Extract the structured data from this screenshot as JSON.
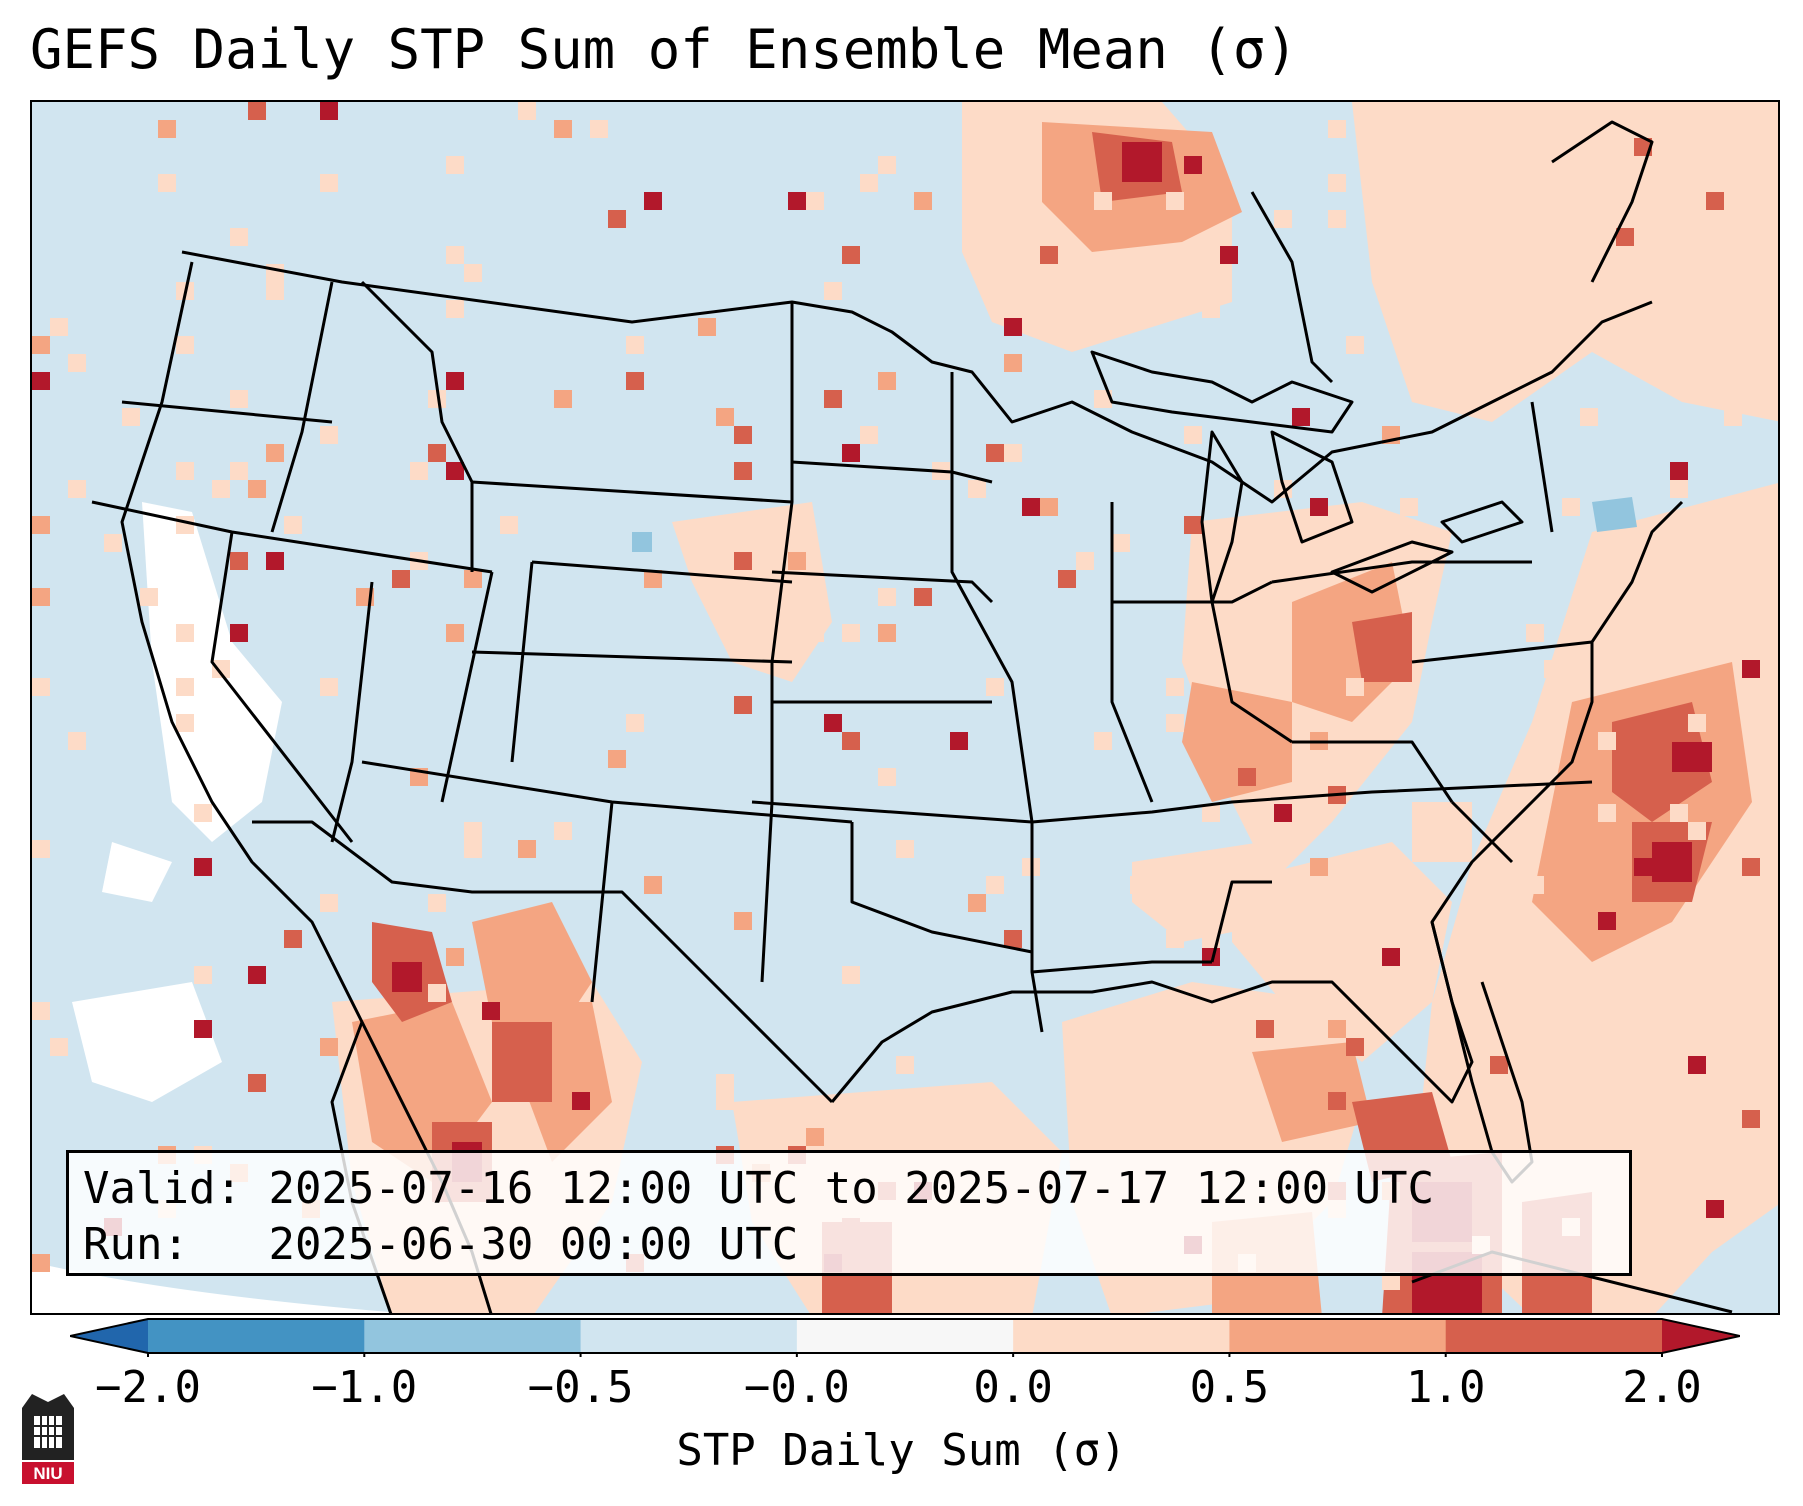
{
  "title": "GEFS Daily STP Sum of Ensemble Mean (σ)",
  "info": {
    "valid_label": "Valid:",
    "valid_value": "2025-07-16 12:00 UTC to 2025-07-17 12:00 UTC",
    "run_label": "Run:",
    "run_value": "2025-06-30 00:00 UTC"
  },
  "colorbar": {
    "label": "STP Daily Sum (σ)",
    "ticks": [
      "−2.0",
      "−1.0",
      "−0.5",
      "−0.0",
      "0.0",
      "0.5",
      "1.0",
      "2.0"
    ],
    "colors": [
      "#2166ac",
      "#4393c3",
      "#92c5de",
      "#d1e5f0",
      "#f7f7f7",
      "#fddbc7",
      "#f4a582",
      "#d6604d",
      "#b2182b"
    ]
  },
  "colors": {
    "background": "#d1e5f0",
    "light_positive": "#fddbc7",
    "mid_positive": "#f4a582",
    "strong_positive": "#d6604d",
    "max_positive": "#b2182b",
    "near_zero": "#f7f7f7",
    "light_negative": "#92c5de"
  },
  "logo": {
    "text": "NIU",
    "icon": "niu-logo-icon"
  }
}
